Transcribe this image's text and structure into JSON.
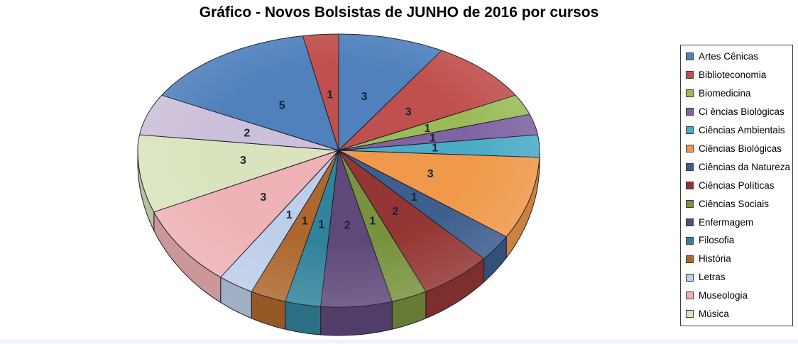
{
  "title": "Gráfico - Novos Bolsistas de JUNHO de 2016 por cursos",
  "chart_data": {
    "type": "pie",
    "title": "Gráfico - Novos Bolsistas de JUNHO de 2016 por cursos",
    "style": "3d-pie",
    "legend_position": "right",
    "start_angle_deg": 0,
    "direction": "clockwise",
    "data_labels": "values-inside",
    "slices": [
      {
        "label": "Artes Cênicas",
        "value": 3,
        "color": "#5081BD"
      },
      {
        "label": "Biblioteconomia",
        "value": 3,
        "color": "#C0504D"
      },
      {
        "label": "Biomedicina",
        "value": 1,
        "color": "#9BBB59"
      },
      {
        "label": "Ci ências Biológicas",
        "value": 1,
        "color": "#8064A2"
      },
      {
        "label": "Ciências Ambientais",
        "value": 1,
        "color": "#4BACC6"
      },
      {
        "label": "Ciências Biológicas",
        "value": 3,
        "color": "#F0994A"
      },
      {
        "label": "Ciências da Natureza",
        "value": 1,
        "color": "#3D5E8E"
      },
      {
        "label": "Ciências Políticas",
        "value": 2,
        "color": "#943634"
      },
      {
        "label": "Ciências Sociais",
        "value": 1,
        "color": "#78923E"
      },
      {
        "label": "Enfermagem",
        "value": 2,
        "color": "#5F497A"
      },
      {
        "label": "Filosofia",
        "value": 1,
        "color": "#31839B"
      },
      {
        "label": "História",
        "value": 1,
        "color": "#AE682E"
      },
      {
        "label": "Letras",
        "value": 1,
        "color": "#BDCEE8"
      },
      {
        "label": "Museologia",
        "value": 3,
        "color": "#EFB2B6"
      },
      {
        "label": "Música",
        "value": 3,
        "color": "#D9E4BE"
      },
      {
        "label": "",
        "value": 2,
        "color": "#CCC0DA"
      },
      {
        "label": "",
        "value": 5,
        "color": "#5081BD"
      },
      {
        "label": "",
        "value": 1,
        "color": "#C0504D"
      }
    ]
  }
}
